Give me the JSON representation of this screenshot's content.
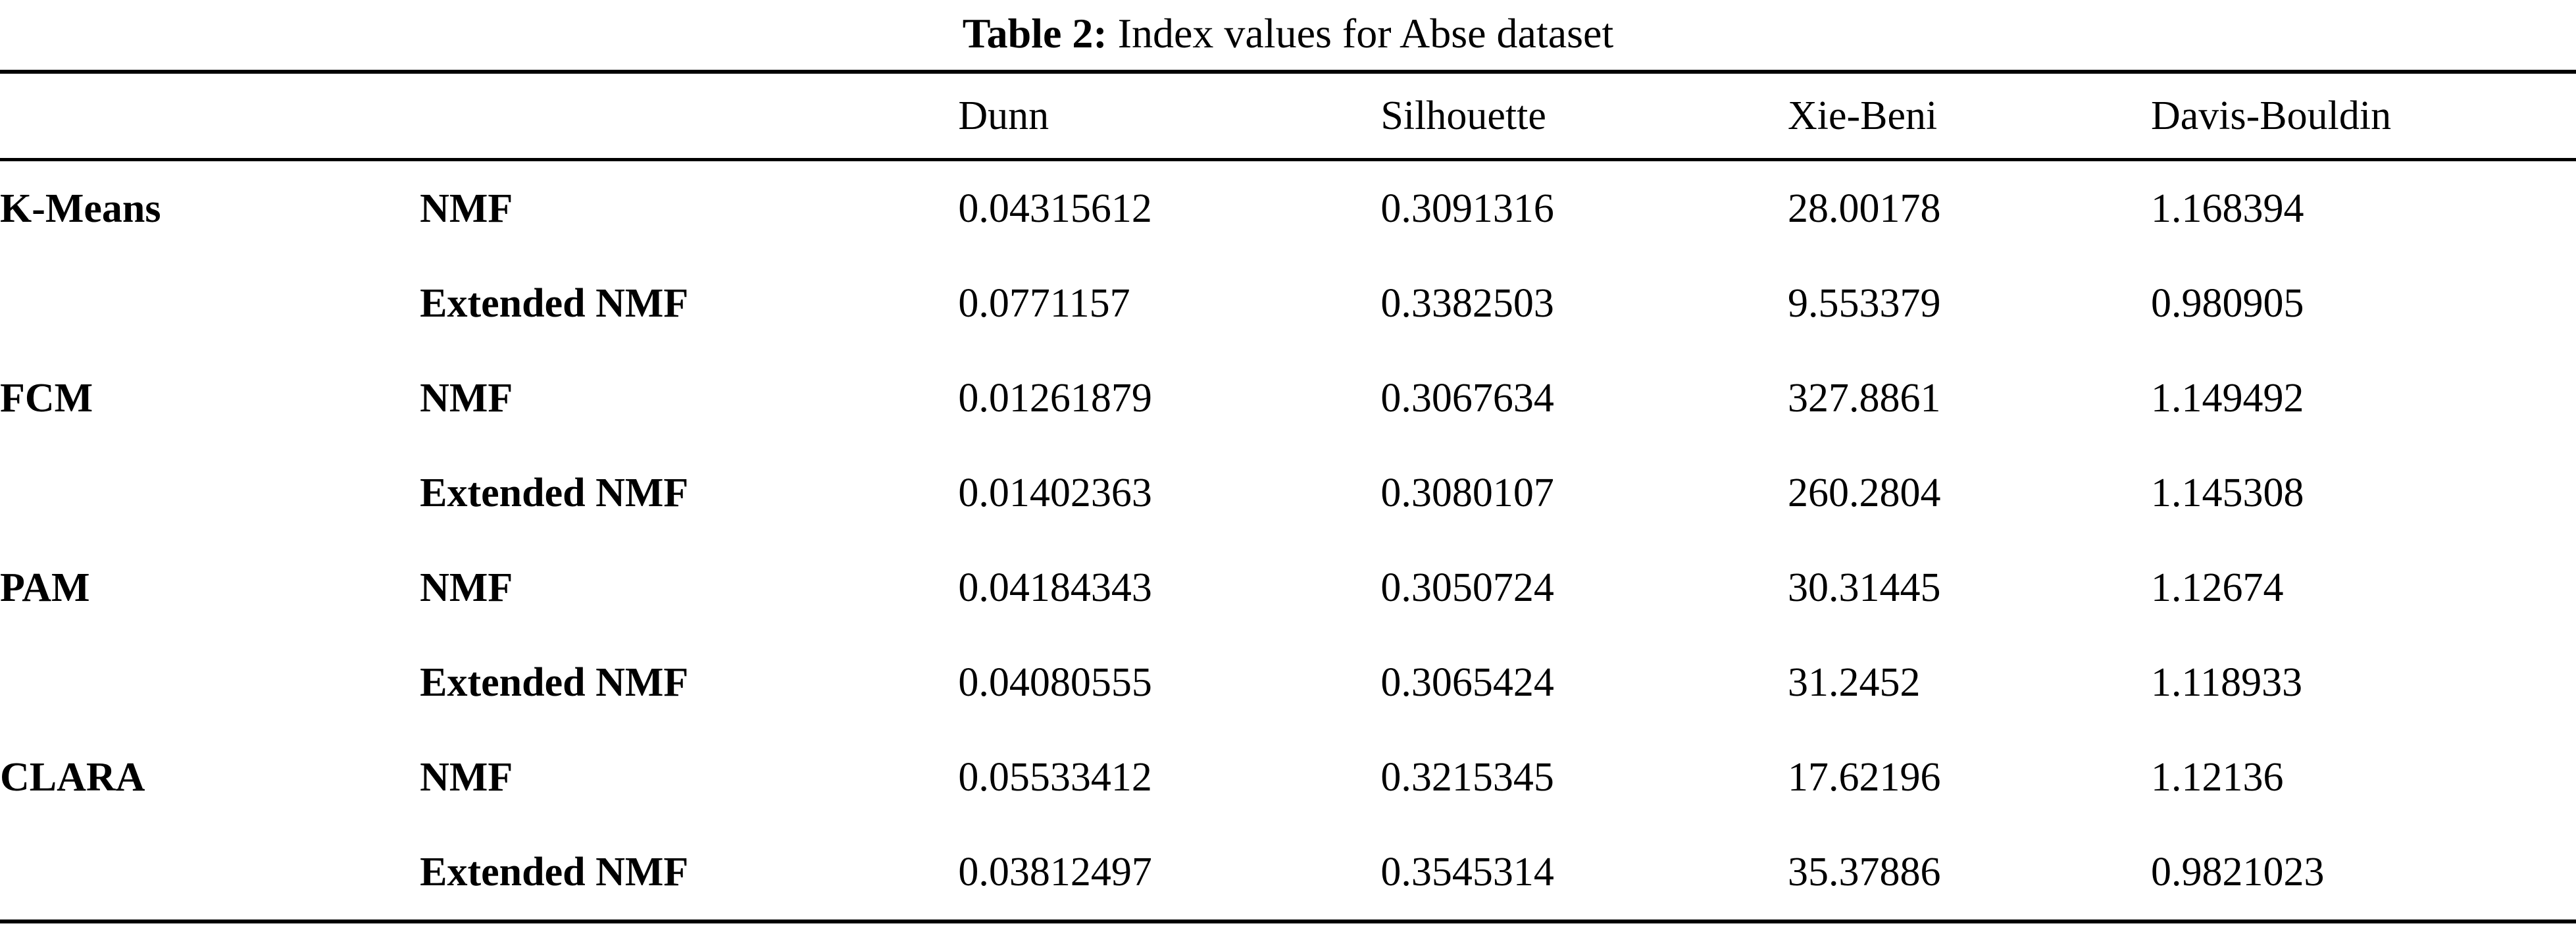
{
  "caption": {
    "label": "Table 2:",
    "text": " Index values for Abse dataset"
  },
  "table": {
    "header": {
      "dunn": "Dunn",
      "silhouette": "Silhouette",
      "xie_beni": "Xie-Beni",
      "davis_bouldin": "Davis-Bouldin"
    },
    "rows": [
      {
        "group": "K-Means",
        "method": "NMF",
        "dunn": "0.04315612",
        "silhouette": "0.3091316",
        "xie_beni": "28.00178",
        "davis_bouldin": "1.168394"
      },
      {
        "group": "",
        "method": "Extended NMF",
        "dunn": "0.0771157",
        "silhouette": "0.3382503",
        "xie_beni": "9.553379",
        "davis_bouldin": "0.980905"
      },
      {
        "group": "FCM",
        "method": "NMF",
        "dunn": "0.01261879",
        "silhouette": "0.3067634",
        "xie_beni": "327.8861",
        "davis_bouldin": "1.149492"
      },
      {
        "group": "",
        "method": "Extended NMF",
        "dunn": "0.01402363",
        "silhouette": "0.3080107",
        "xie_beni": "260.2804",
        "davis_bouldin": "1.145308"
      },
      {
        "group": "PAM",
        "method": "NMF",
        "dunn": "0.04184343",
        "silhouette": "0.3050724",
        "xie_beni": "30.31445",
        "davis_bouldin": "1.12674"
      },
      {
        "group": "",
        "method": "Extended NMF",
        "dunn": "0.04080555",
        "silhouette": "0.3065424",
        "xie_beni": "31.2452",
        "davis_bouldin": "1.118933"
      },
      {
        "group": "CLARA",
        "method": "NMF",
        "dunn": "0.05533412",
        "silhouette": "0.3215345",
        "xie_beni": "17.62196",
        "davis_bouldin": "1.12136"
      },
      {
        "group": "",
        "method": "Extended NMF",
        "dunn": "0.03812497",
        "silhouette": "0.3545314",
        "xie_beni": "35.37886",
        "davis_bouldin": "0.9821023"
      }
    ]
  }
}
